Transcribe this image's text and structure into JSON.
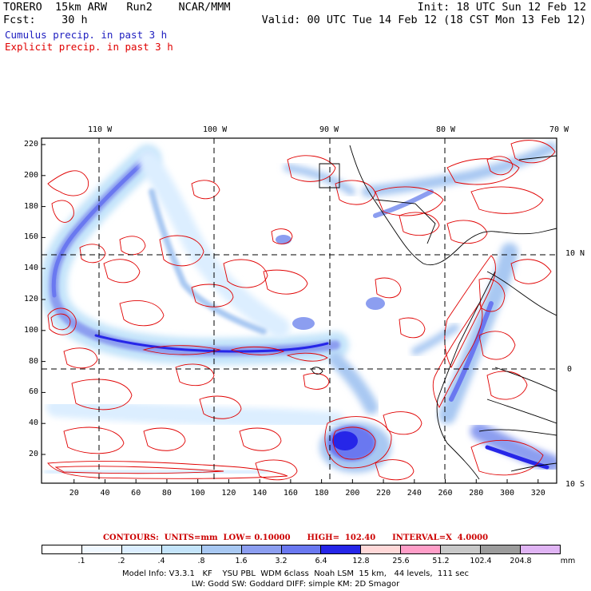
{
  "header": {
    "line1_left": "TORERO  15km ARW   Run2    NCAR/MMM",
    "line1_right": "Init: 18 UTC Sun 12 Feb 12",
    "line2_left": "Fcst:    30 h",
    "line2_right": "Valid: 00 UTC Tue 14 Feb 12 (18 CST Mon 13 Feb 12)",
    "legend_cumulus": "Cumulus precip. in past 3 h",
    "legend_explicit": "Explicit precip. in past 3 h"
  },
  "colors": {
    "cumulus_text": "#2020c0",
    "explicit_text": "#e00000",
    "contour": "#e00000",
    "coast": "#000000"
  },
  "map": {
    "lon_labels": [
      "110 W",
      "100 W",
      "90 W",
      "80 W",
      "70 W"
    ],
    "lat_labels": [
      "10 N",
      "0",
      "10 S"
    ],
    "x_ticks": [
      "20",
      "40",
      "60",
      "80",
      "100",
      "120",
      "140",
      "160",
      "180",
      "200",
      "220",
      "240",
      "260",
      "280",
      "300",
      "320"
    ],
    "y_ticks": [
      "220",
      "200",
      "180",
      "160",
      "140",
      "120",
      "100",
      "80",
      "60",
      "40",
      "20"
    ]
  },
  "contour_info": "CONTOURS:  UNITS=mm  LOW= 0.10000      HIGH=  102.40      INTERVAL=X  4.0000",
  "legend": {
    "colors": [
      "#ffffff",
      "#f0f8ff",
      "#dceeff",
      "#c4e4fa",
      "#a8c8f2",
      "#8c9ef0",
      "#6a78f0",
      "#2626e8",
      "#ffd8d8",
      "#ff9ec8",
      "#c8c8c8",
      "#9c9c9c",
      "#e0b4f4"
    ],
    "labels": [
      ".1",
      ".2",
      ".4",
      ".8",
      "1.6",
      "3.2",
      "6.4",
      "12.8",
      "25.6",
      "51.2",
      "102.4",
      "204.8"
    ],
    "units": "mm"
  },
  "footer": {
    "line1": "Model Info: V3.3.1   KF    YSU PBL  WDM 6class  Noah LSM  15 km,   44 levels,  111 sec",
    "line2": "LW: Godd SW: Goddard DIFF: simple KM: 2D Smagor"
  }
}
